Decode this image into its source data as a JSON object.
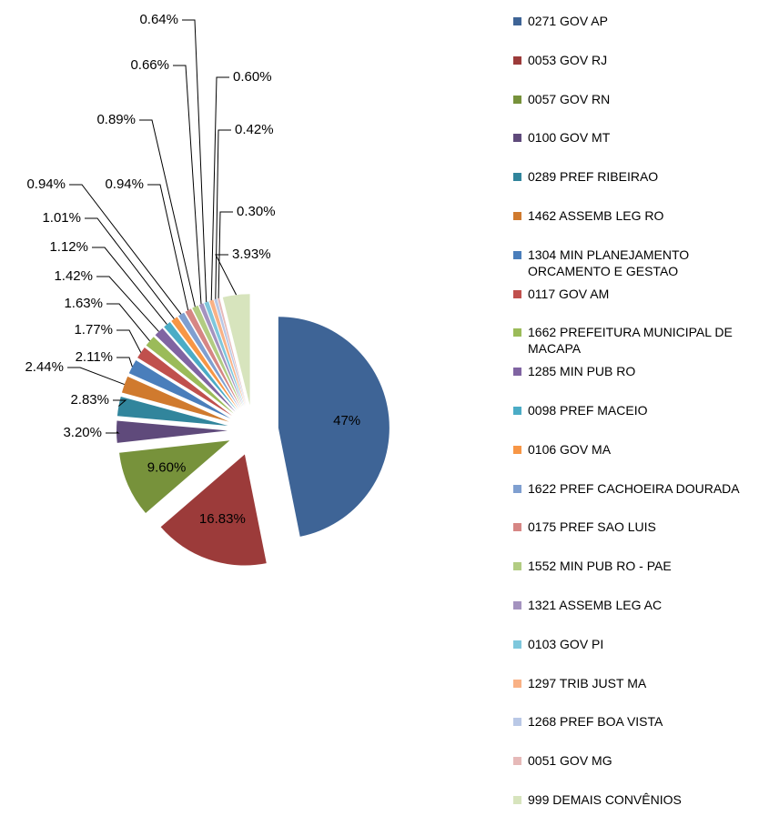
{
  "chart_data": {
    "type": "pie",
    "series": [
      {
        "name": "0271 GOV AP",
        "color": "#3e6496"
      },
      {
        "name": "0053 GOV RJ",
        "color": "#9c3b3a"
      },
      {
        "name": "0057 GOV RN",
        "color": "#77923b"
      },
      {
        "name": "0100 GOV MT",
        "color": "#5f4a7b"
      },
      {
        "name": "0289 PREF RIBEIRAO",
        "color": "#31859c"
      },
      {
        "name": "1462 ASSEMB LEG RO",
        "color": "#d07a2e"
      },
      {
        "name": "1304 MIN PLANEJAMENTO ORCAMENTO E GESTAO",
        "color": "#4a7ebb"
      },
      {
        "name": "0117 GOV AM",
        "color": "#c0504d"
      },
      {
        "name": "1662 PREFEITURA MUNICIPAL DE MACAPA",
        "color": "#9bbb59"
      },
      {
        "name": "1285 MIN PUB RO",
        "color": "#8064a2"
      },
      {
        "name": "0098 PREF MACEIO",
        "color": "#4bacc6"
      },
      {
        "name": "0106 GOV MA",
        "color": "#f79646"
      },
      {
        "name": "1622 PREF CACHOEIRA DOURADA",
        "color": "#7f9fd0"
      },
      {
        "name": "0175 PREF SAO LUIS",
        "color": "#d68684"
      },
      {
        "name": "1552 MIN PUB RO - PAE",
        "color": "#b2cc82"
      },
      {
        "name": "1321 ASSEMB LEG AC",
        "color": "#a493bf"
      },
      {
        "name": "0103 GOV PI",
        "color": "#7ec7dc"
      },
      {
        "name": "1297 TRIB JUST MA",
        "color": "#f9b185"
      },
      {
        "name": "1268 PREF BOA VISTA",
        "color": "#b9c8e6"
      },
      {
        "name": "0051 GOV MG",
        "color": "#e6b9b8"
      },
      {
        "name": "999 DEMAIS CONVÊNIOS",
        "color": "#d7e4bd"
      }
    ],
    "values": [
      47,
      16.83,
      9.6,
      3.2,
      2.83,
      2.44,
      2.11,
      1.77,
      1.63,
      1.42,
      1.12,
      1.01,
      0.94,
      0.94,
      0.89,
      0.66,
      0.64,
      0.6,
      0.42,
      0.3,
      3.93
    ],
    "value_labels": [
      "47%",
      "16.83%",
      "9.60%",
      "3.20%",
      "2.83%",
      "2.44%",
      "2.11%",
      "1.77%",
      "1.63%",
      "1.42%",
      "1.12%",
      "1.01%",
      "0.94%",
      "0.94%",
      "0.89%",
      "0.66%",
      "0.64%",
      "0.60%",
      "0.42%",
      "0.30%",
      "3.93%"
    ],
    "legend": "right"
  }
}
